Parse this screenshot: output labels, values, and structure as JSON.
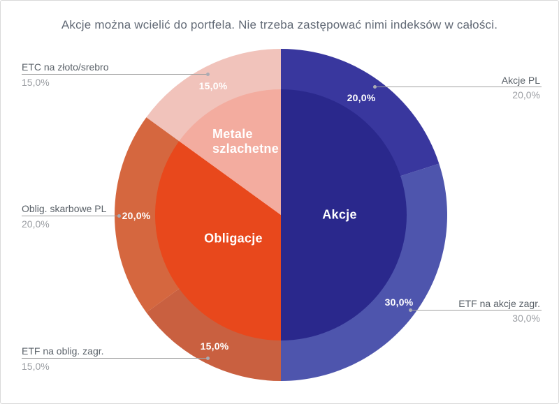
{
  "chart_data": {
    "type": "pie",
    "subtype": "two-level-donut",
    "title": "Akcje można wcielić do portfela. Nie trzeba zastępować nimi indeksów w całości.",
    "unit": "%",
    "start_angle_deg": 0,
    "direction": "clockwise",
    "legend_position": "none",
    "inner_ring": [
      {
        "label": "Akcje",
        "value": 50,
        "value_display": "50,0%",
        "color": "#2A288C"
      },
      {
        "label": "Obligacje",
        "value": 35,
        "value_display": "35,0%",
        "color": "#E8481C"
      },
      {
        "label": "Metale szlachetne",
        "value": 15,
        "value_display": "15,0%",
        "color": "#F3AC9F"
      }
    ],
    "outer_ring": [
      {
        "label": "Akcje PL",
        "value": 20,
        "value_display": "20,0%",
        "color": "#39379E"
      },
      {
        "label": "ETF na akcje zagr.",
        "value": 30,
        "value_display": "30,0%",
        "color": "#4E55AD"
      },
      {
        "label": "ETF na oblig. zagr.",
        "value": 15,
        "value_display": "15,0%",
        "color": "#C96040"
      },
      {
        "label": "Oblig. skarbowe PL",
        "value": 20,
        "value_display": "20,0%",
        "color": "#D5673F"
      },
      {
        "label": "ETC na złoto/srebro",
        "value": 15,
        "value_display": "15,0%",
        "color": "#F1C3BB"
      }
    ],
    "colors": {
      "title_text": "#626a76",
      "callout_label": "#5a6168",
      "callout_value": "#9b9ea3",
      "leader_line": "#9e9e9e",
      "background": "#ffffff",
      "card_border": "#d9d9d9",
      "slice_value_text": "#ffffff"
    }
  }
}
